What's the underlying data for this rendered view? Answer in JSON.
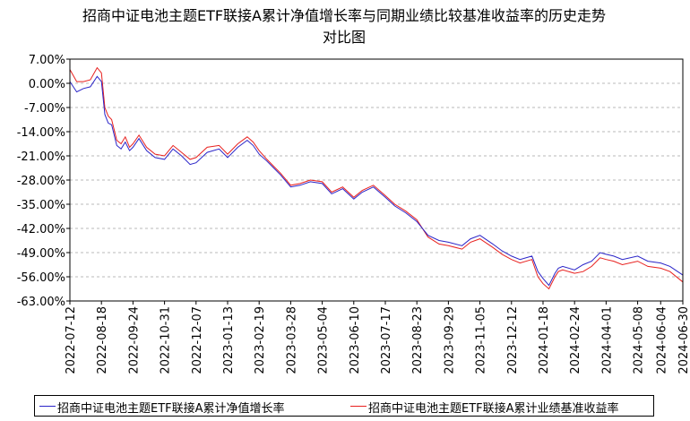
{
  "chart_data": {
    "type": "line",
    "title": "招商中证电池主题ETF联接A累计净值增长率与同期业绩比较基准收益率的历史走势对比图",
    "title_lines": [
      "招商中证电池主题ETF联接A累计净值增长率与同期业绩比较基准收益率的历史走势",
      "对比图"
    ],
    "xlabel": "",
    "ylabel": "",
    "y_unit": "%",
    "ylim": [
      -63,
      7
    ],
    "yticks": [
      7,
      0,
      -7,
      -14,
      -21,
      -28,
      -35,
      -42,
      -49,
      -56,
      -63
    ],
    "ytick_labels": [
      "7.00%",
      "0.00%",
      "-7.00%",
      "-14.00%",
      "-21.00%",
      "-28.00%",
      "-35.00%",
      "-42.00%",
      "-49.00%",
      "-56.00%",
      "-63.00%"
    ],
    "x_range": [
      "2022-07-12",
      "2024-06-30"
    ],
    "xticks": [
      "2022-07-12",
      "2022-08-18",
      "2022-09-24",
      "2022-10-31",
      "2022-12-07",
      "2023-01-13",
      "2023-02-19",
      "2023-03-28",
      "2023-05-04",
      "2023-06-10",
      "2023-07-17",
      "2023-08-23",
      "2023-09-29",
      "2023-11-05",
      "2023-12-12",
      "2024-01-18",
      "2024-02-24",
      "2024-04-01",
      "2024-05-08",
      "2024-06-04",
      "2024-06-30"
    ],
    "grid": true,
    "legend_position": "bottom",
    "series": [
      {
        "name": "招商中证电池主题ETF联接A累计净值增长率",
        "color": "#2a24c8",
        "x": [
          "2022-07-12",
          "2022-07-20",
          "2022-07-28",
          "2022-08-05",
          "2022-08-13",
          "2022-08-18",
          "2022-08-22",
          "2022-08-26",
          "2022-08-30",
          "2022-09-05",
          "2022-09-10",
          "2022-09-15",
          "2022-09-20",
          "2022-09-24",
          "2022-10-01",
          "2022-10-10",
          "2022-10-20",
          "2022-10-31",
          "2022-11-10",
          "2022-11-20",
          "2022-11-30",
          "2022-12-07",
          "2022-12-20",
          "2023-01-03",
          "2023-01-13",
          "2023-01-25",
          "2023-02-05",
          "2023-02-12",
          "2023-02-19",
          "2023-02-28",
          "2023-03-08",
          "2023-03-16",
          "2023-03-28",
          "2023-04-08",
          "2023-04-20",
          "2023-05-04",
          "2023-05-15",
          "2023-05-28",
          "2023-06-10",
          "2023-06-20",
          "2023-07-03",
          "2023-07-17",
          "2023-07-28",
          "2023-08-10",
          "2023-08-23",
          "2023-09-05",
          "2023-09-18",
          "2023-09-29",
          "2023-10-15",
          "2023-10-25",
          "2023-11-05",
          "2023-11-20",
          "2023-12-01",
          "2023-12-12",
          "2023-12-22",
          "2024-01-05",
          "2024-01-12",
          "2024-01-18",
          "2024-01-25",
          "2024-02-01",
          "2024-02-05",
          "2024-02-10",
          "2024-02-24",
          "2024-03-05",
          "2024-03-15",
          "2024-03-25",
          "2024-04-01",
          "2024-04-10",
          "2024-04-20",
          "2024-05-08",
          "2024-05-20",
          "2024-06-04",
          "2024-06-15",
          "2024-06-30"
        ],
        "values": [
          0.5,
          -2.5,
          -1.5,
          -1.0,
          2.0,
          0.5,
          -9.0,
          -11.5,
          -12.0,
          -18.0,
          -19.0,
          -17.0,
          -19.5,
          -18.5,
          -16.0,
          -19.5,
          -21.5,
          -22.0,
          -19.0,
          -21.0,
          -23.5,
          -23.0,
          -20.0,
          -19.0,
          -21.5,
          -18.5,
          -16.5,
          -18.0,
          -20.5,
          -22.5,
          -24.5,
          -26.5,
          -30.0,
          -29.5,
          -28.5,
          -29.0,
          -32.0,
          -30.5,
          -33.5,
          -31.5,
          -30.0,
          -33.0,
          -35.5,
          -37.5,
          -40.0,
          -44.0,
          -45.5,
          -46.0,
          -47.0,
          -45.0,
          -44.0,
          -46.5,
          -48.5,
          -50.0,
          -51.0,
          -50.0,
          -54.5,
          -56.5,
          -58.5,
          -55.0,
          -53.5,
          -53.0,
          -54.0,
          -52.5,
          -51.5,
          -49.0,
          -49.5,
          -50.0,
          -51.0,
          -50.0,
          -51.5,
          -52.0,
          -53.0,
          -55.5
        ]
      },
      {
        "name": "招商中证电池主题ETF联接A累计业绩基准收益率",
        "color": "#e8201e",
        "x": [
          "2022-07-12",
          "2022-07-20",
          "2022-07-28",
          "2022-08-05",
          "2022-08-13",
          "2022-08-18",
          "2022-08-22",
          "2022-08-26",
          "2022-08-30",
          "2022-09-05",
          "2022-09-10",
          "2022-09-15",
          "2022-09-20",
          "2022-09-24",
          "2022-10-01",
          "2022-10-10",
          "2022-10-20",
          "2022-10-31",
          "2022-11-10",
          "2022-11-20",
          "2022-11-30",
          "2022-12-07",
          "2022-12-20",
          "2023-01-03",
          "2023-01-13",
          "2023-01-25",
          "2023-02-05",
          "2023-02-12",
          "2023-02-19",
          "2023-02-28",
          "2023-03-08",
          "2023-03-16",
          "2023-03-28",
          "2023-04-08",
          "2023-04-20",
          "2023-05-04",
          "2023-05-15",
          "2023-05-28",
          "2023-06-10",
          "2023-06-20",
          "2023-07-03",
          "2023-07-17",
          "2023-07-28",
          "2023-08-10",
          "2023-08-23",
          "2023-09-05",
          "2023-09-18",
          "2023-09-29",
          "2023-10-15",
          "2023-10-25",
          "2023-11-05",
          "2023-11-20",
          "2023-12-01",
          "2023-12-12",
          "2023-12-22",
          "2024-01-05",
          "2024-01-12",
          "2024-01-18",
          "2024-01-25",
          "2024-02-01",
          "2024-02-05",
          "2024-02-10",
          "2024-02-24",
          "2024-03-05",
          "2024-03-15",
          "2024-03-25",
          "2024-04-01",
          "2024-04-10",
          "2024-04-20",
          "2024-05-08",
          "2024-05-20",
          "2024-06-04",
          "2024-06-15",
          "2024-06-30"
        ],
        "values": [
          4.0,
          0.5,
          0.5,
          1.0,
          4.5,
          3.0,
          -7.0,
          -9.5,
          -10.5,
          -16.5,
          -17.5,
          -15.5,
          -18.5,
          -17.5,
          -15.0,
          -18.5,
          -20.5,
          -21.0,
          -18.0,
          -20.0,
          -22.0,
          -21.5,
          -18.5,
          -18.0,
          -20.5,
          -17.5,
          -15.5,
          -17.0,
          -19.5,
          -22.0,
          -24.0,
          -26.0,
          -29.5,
          -29.0,
          -28.0,
          -28.5,
          -31.5,
          -30.0,
          -33.0,
          -31.0,
          -29.5,
          -32.5,
          -35.0,
          -37.0,
          -39.5,
          -44.5,
          -46.5,
          -47.0,
          -48.0,
          -46.0,
          -45.0,
          -47.5,
          -49.5,
          -51.0,
          -52.0,
          -51.0,
          -56.0,
          -58.0,
          -59.5,
          -56.0,
          -54.5,
          -54.0,
          -55.0,
          -54.5,
          -53.0,
          -50.5,
          -51.0,
          -51.5,
          -52.5,
          -51.5,
          -53.0,
          -53.5,
          -54.5,
          -57.5
        ]
      }
    ]
  }
}
